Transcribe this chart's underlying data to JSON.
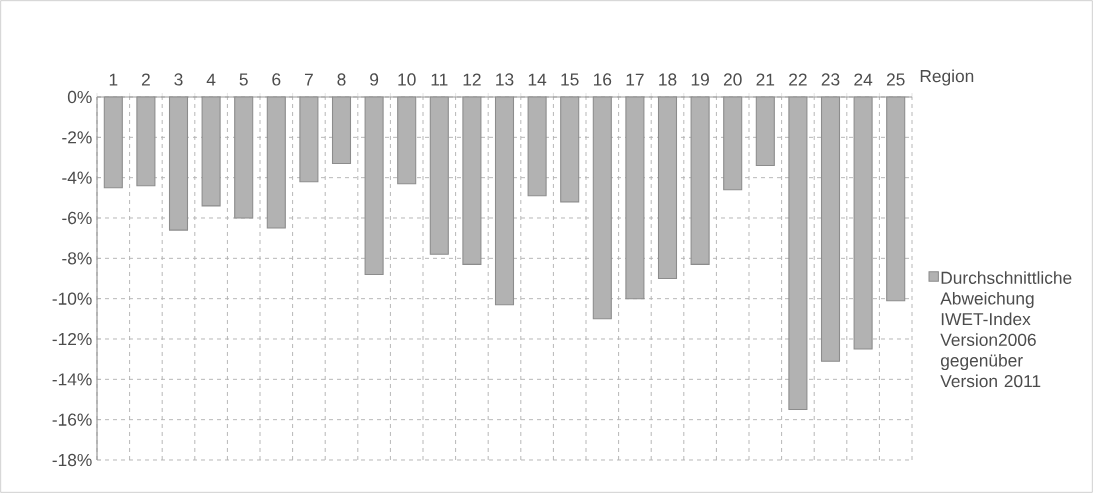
{
  "chart_data": {
    "type": "bar",
    "xlabel": "Region",
    "categories": [
      "1",
      "2",
      "3",
      "4",
      "5",
      "6",
      "7",
      "8",
      "9",
      "10",
      "11",
      "12",
      "13",
      "14",
      "15",
      "16",
      "17",
      "18",
      "19",
      "20",
      "21",
      "22",
      "23",
      "24",
      "25"
    ],
    "series": [
      {
        "name": "Durchschnittliche Abweichung IWET-Index Version2006 gegenüber Version 2011",
        "color": "#b2b2b2",
        "values": [
          -4.5,
          -4.4,
          -6.6,
          -5.4,
          -6.0,
          -6.5,
          -4.2,
          -3.3,
          -8.8,
          -4.3,
          -7.8,
          -8.3,
          -10.3,
          -4.9,
          -5.2,
          -11.0,
          -10.0,
          -9.0,
          -8.3,
          -4.6,
          -3.4,
          -15.5,
          -13.1,
          -12.5,
          -10.1
        ]
      }
    ],
    "ylim": [
      -18,
      0
    ],
    "yticks": [
      {
        "value": 0,
        "label": "0%"
      },
      {
        "value": -2,
        "label": "-2%"
      },
      {
        "value": -4,
        "label": "-4%"
      },
      {
        "value": -6,
        "label": "-6%"
      },
      {
        "value": -8,
        "label": "-8%"
      },
      {
        "value": -10,
        "label": "-10%"
      },
      {
        "value": -12,
        "label": "-12%"
      },
      {
        "value": -14,
        "label": "-14%"
      },
      {
        "value": -16,
        "label": "-16%"
      },
      {
        "value": -18,
        "label": "-18%"
      }
    ],
    "grid": true,
    "legend": "right"
  }
}
